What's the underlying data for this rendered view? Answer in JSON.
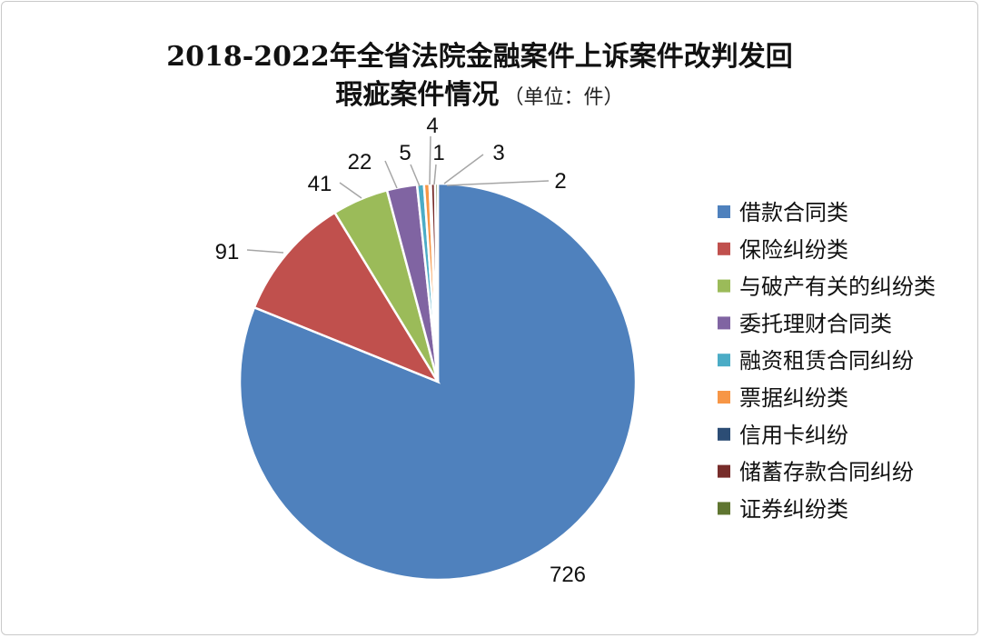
{
  "chart_data": {
    "type": "pie",
    "title_line1": "2018-2022年全省法院金融案件上诉案件改判发回",
    "title_line2": "瑕疵案件情况",
    "title_unit": "（单位：件）",
    "legend_position": "right",
    "categories": [
      "借款合同类",
      "保险纠纷类",
      "与破产有关的纠纷类",
      "委托理财合同类",
      "融资租赁合同纠纷",
      "票据纠纷类",
      "信用卡纠纷",
      "储蓄存款合同纠纷",
      "证券纠纷类"
    ],
    "values": [
      726,
      91,
      41,
      22,
      5,
      4,
      1,
      3,
      2
    ],
    "colors": [
      "#4f81bd",
      "#c0504d",
      "#9bbb59",
      "#8064a2",
      "#4bacc6",
      "#f79646",
      "#2c4d75",
      "#772c2a",
      "#5f7530"
    ]
  }
}
